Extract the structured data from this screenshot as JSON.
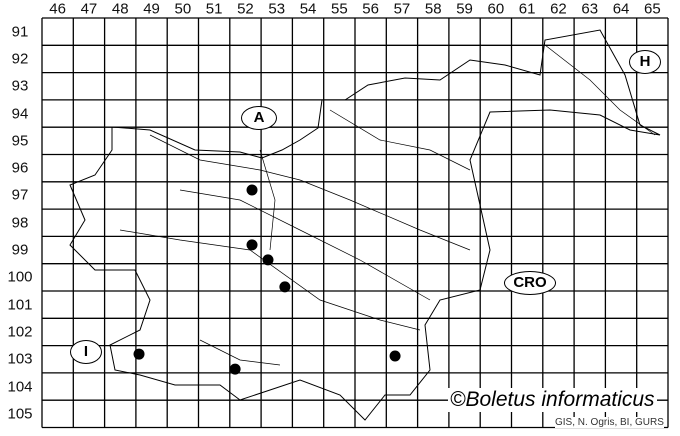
{
  "map": {
    "columns": [
      "46",
      "47",
      "48",
      "49",
      "50",
      "51",
      "52",
      "53",
      "54",
      "55",
      "56",
      "57",
      "58",
      "59",
      "60",
      "61",
      "62",
      "63",
      "64",
      "65"
    ],
    "rows": [
      "91",
      "92",
      "93",
      "94",
      "95",
      "96",
      "97",
      "98",
      "99",
      "100",
      "101",
      "102",
      "103",
      "104",
      "105"
    ],
    "country_labels": {
      "austria": "A",
      "hungary": "H",
      "croatia": "CRO",
      "italy": "I"
    },
    "records": [
      {
        "col": 52.71,
        "row": 97.3
      },
      {
        "col": 52.71,
        "row": 99.31
      },
      {
        "col": 53.22,
        "row": 99.86
      },
      {
        "col": 53.76,
        "row": 100.85
      },
      {
        "col": 49.1,
        "row": 103.31
      },
      {
        "col": 52.17,
        "row": 103.86
      },
      {
        "col": 57.28,
        "row": 103.38
      }
    ],
    "record_color": "#000000",
    "credit": "©Boletus informaticus",
    "source": "GIS, N. Ogris, BI, GURS"
  }
}
